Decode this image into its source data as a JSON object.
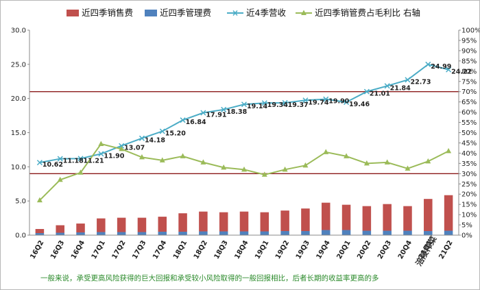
{
  "colors": {
    "selling": "#c0504d",
    "admin": "#4f81bd",
    "revenue": "#4bacc6",
    "ratio": "#9bbb59",
    "refline": "#8b1a1a",
    "footnote": "#2a8a2a"
  },
  "footnote": "一般来说，承受更高风险获得的巨大回报和承受较小风险取得的一般回报相比，后者长期的收益率更高的多",
  "brand": "涪陵榨菜",
  "chart_data": {
    "type": "bar",
    "categories": [
      "16Q2",
      "16Q3",
      "16Q4",
      "17Q1",
      "17Q2",
      "17Q3",
      "17Q4",
      "18Q1",
      "18Q2",
      "18Q3",
      "18Q4",
      "19Q1",
      "19Q2",
      "19Q3",
      "19Q4",
      "20Q1",
      "20Q2",
      "20Q3",
      "20Q4",
      "21Q1",
      "21Q2"
    ],
    "left_axis": {
      "min": 0,
      "max": 30,
      "ticks": [
        "0.0",
        "5.0",
        "10.0",
        "15.0",
        "20.0",
        "25.0",
        "30.0"
      ]
    },
    "right_axis": {
      "min": 0,
      "max": 100,
      "ticks": [
        "0%",
        "5%",
        "10%",
        "15%",
        "20%",
        "25%",
        "30%",
        "35%",
        "40%",
        "45%",
        "50%",
        "55%",
        "60%",
        "65%",
        "70%",
        "75%",
        "80%",
        "85%",
        "90%",
        "95%",
        "100%"
      ]
    },
    "series": [
      {
        "name": "近四季销售费",
        "type": "bar",
        "axis": "left",
        "stacked": true,
        "values": [
          0.6,
          1.1,
          1.3,
          2.0,
          2.1,
          2.1,
          2.2,
          2.7,
          2.9,
          2.8,
          2.9,
          2.8,
          3.0,
          3.3,
          4.0,
          3.7,
          3.6,
          3.9,
          3.6,
          4.7,
          5.2
        ]
      },
      {
        "name": "近四季管理费",
        "type": "bar",
        "axis": "left",
        "stacked": true,
        "values": [
          0.3,
          0.35,
          0.4,
          0.45,
          0.45,
          0.45,
          0.5,
          0.5,
          0.55,
          0.55,
          0.55,
          0.55,
          0.6,
          0.6,
          0.75,
          0.75,
          0.65,
          0.65,
          0.65,
          0.6,
          0.65
        ]
      },
      {
        "name": "近4季营收",
        "type": "line",
        "axis": "left",
        "values": [
          10.62,
          11.18,
          11.21,
          11.9,
          13.07,
          14.18,
          15.2,
          16.84,
          17.91,
          18.38,
          19.14,
          19.34,
          19.37,
          19.74,
          19.9,
          19.46,
          21.01,
          21.84,
          22.73,
          24.99,
          24.22
        ],
        "labels": [
          "10.62",
          "11.18",
          "11.21",
          "11.90",
          "13.07",
          "14.18",
          "15.20",
          "16.84",
          "17.91",
          "18.38",
          "19.14",
          "19.34",
          "19.37",
          "19.74",
          "19.90",
          "19.46",
          "21.01",
          "21.84",
          "22.73",
          "24.99",
          "24.22"
        ]
      },
      {
        "name": "近四季销管费占毛利比 右轴",
        "type": "line",
        "axis": "right",
        "values": [
          17,
          27,
          30.5,
          44.5,
          42,
          38,
          36.5,
          38.5,
          35.5,
          33,
          32,
          29.5,
          32,
          34,
          40.5,
          38.5,
          35,
          35.5,
          32.5,
          36,
          41
        ]
      }
    ],
    "reference_lines_right": [
      30,
      70
    ],
    "grid": false,
    "legend_position": "top"
  }
}
